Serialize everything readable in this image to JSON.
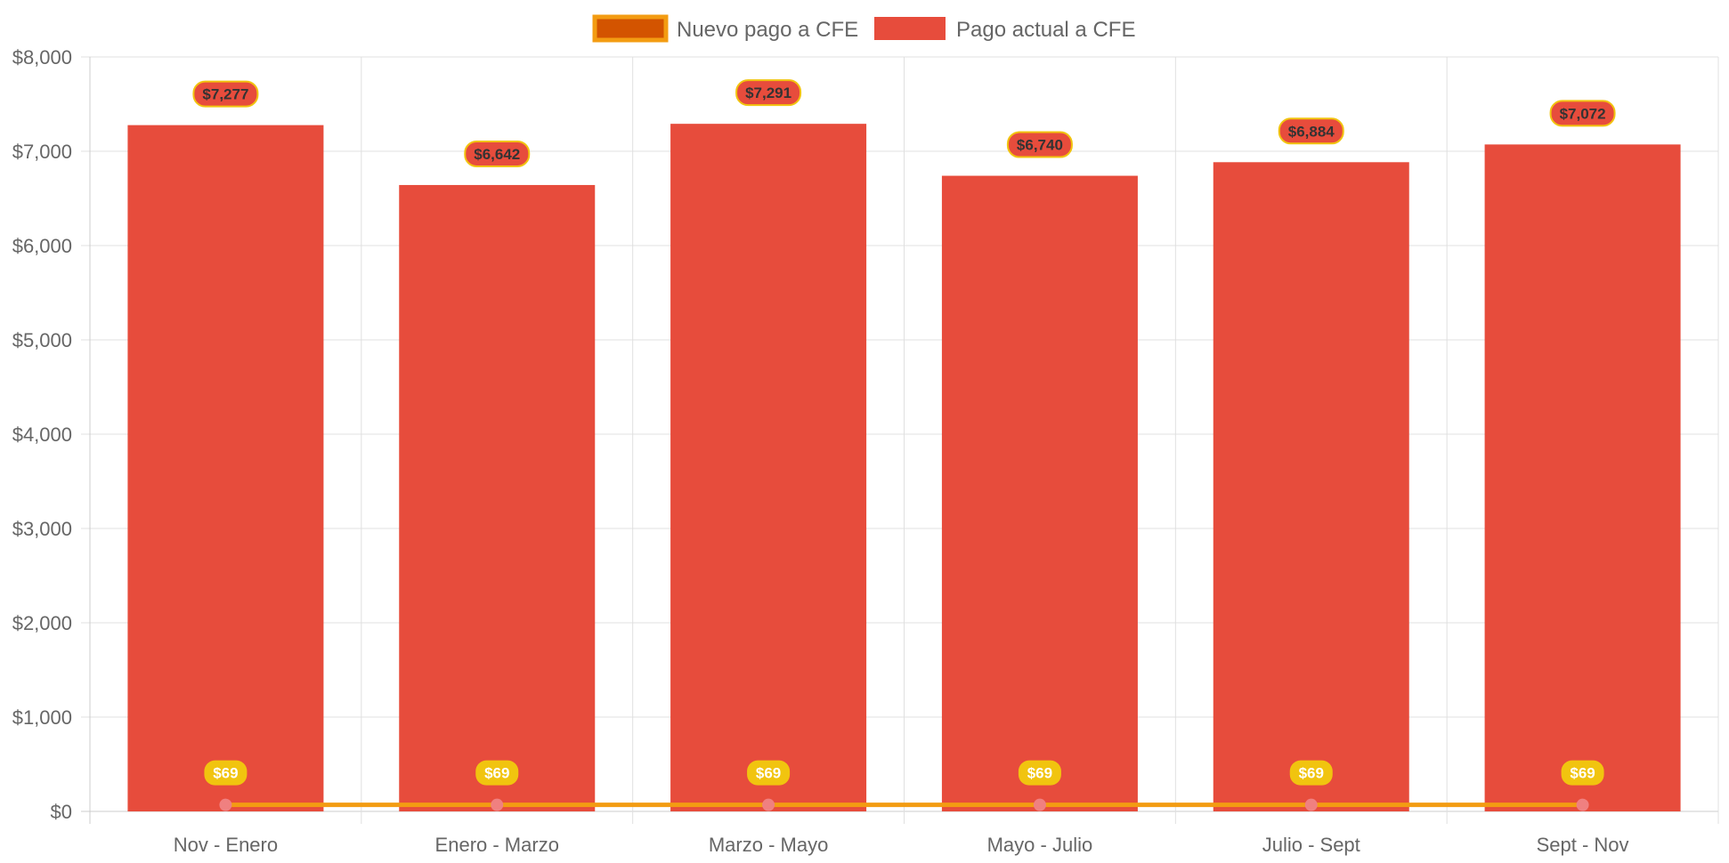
{
  "chart_data": {
    "type": "bar",
    "categories": [
      "Nov - Enero",
      "Enero - Marzo",
      "Marzo - Mayo",
      "Mayo - Julio",
      "Julio - Sept",
      "Sept - Nov"
    ],
    "series": [
      {
        "name": "Pago actual a CFE",
        "type": "bar",
        "values": [
          7277,
          6642,
          7291,
          6740,
          6884,
          7072
        ],
        "labels": [
          "$7,277",
          "$6,642",
          "$7,291",
          "$6,740",
          "$6,884",
          "$7,072"
        ],
        "color": "#e74c3c"
      },
      {
        "name": "Nuevo pago a CFE",
        "type": "line",
        "values": [
          69,
          69,
          69,
          69,
          69,
          69
        ],
        "labels": [
          "$69",
          "$69",
          "$69",
          "$69",
          "$69",
          "$69"
        ],
        "color": "#f39c12",
        "fill_color": "#d35400"
      }
    ],
    "legend": [
      {
        "label": "Nuevo pago a CFE",
        "swatch": "line"
      },
      {
        "label": "Pago actual a CFE",
        "swatch": "bar"
      }
    ],
    "legend_position": "top",
    "ylim": [
      0,
      8000
    ],
    "yticks": [
      0,
      1000,
      2000,
      3000,
      4000,
      5000,
      6000,
      7000,
      8000
    ],
    "ytick_labels": [
      "$0",
      "$1,000",
      "$2,000",
      "$3,000",
      "$4,000",
      "$5,000",
      "$6,000",
      "$7,000",
      "$8,000"
    ],
    "grid": true,
    "colors": {
      "bar": "#e74c3c",
      "line": "#f39c12",
      "line_point": "#f08080",
      "bar_label_bg": "#e74c3c",
      "bar_label_border": "#f1c40f",
      "line_label_bg": "#f1c40f",
      "grid": "#e0e0e0",
      "axis": "#cccccc"
    }
  }
}
